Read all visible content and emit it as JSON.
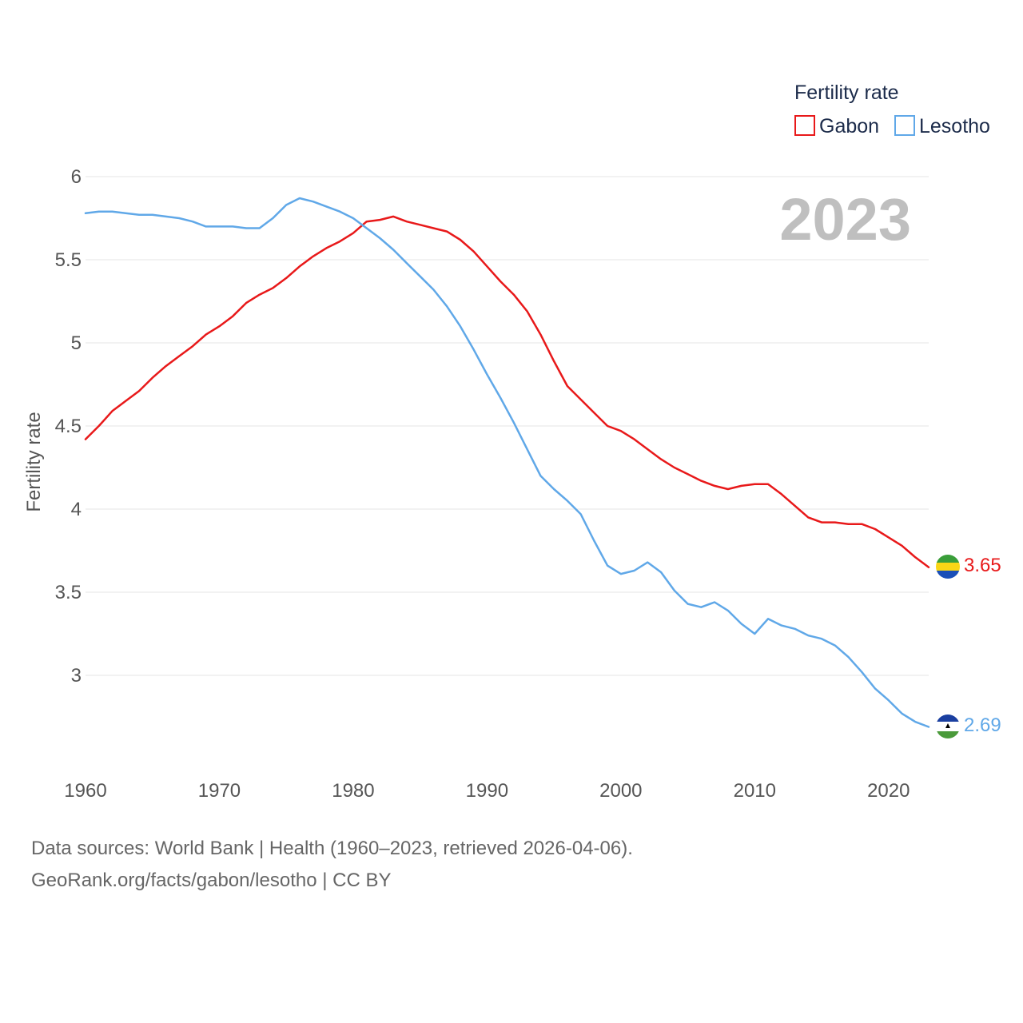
{
  "chart_data": {
    "type": "line",
    "title": "",
    "current_year": "2023",
    "legend": {
      "title": "Fertility rate",
      "placement": "top-right"
    },
    "xlabel": "",
    "ylabel": "Fertility rate",
    "xlim": [
      1960,
      2023
    ],
    "ylim": [
      2.5,
      6.1
    ],
    "x_ticks": [
      1960,
      1970,
      1980,
      1990,
      2000,
      2010,
      2020
    ],
    "x_tick_labels": [
      "1960",
      "1970",
      "1980",
      "1990",
      "2000",
      "2010",
      "2020"
    ],
    "y_ticks": [
      3,
      3.5,
      4,
      4.5,
      5,
      5.5,
      6
    ],
    "y_tick_labels": [
      "3",
      "3.5",
      "4",
      "4.5",
      "5",
      "5.5",
      "6"
    ],
    "grid": true,
    "x": [
      1960,
      1961,
      1962,
      1963,
      1964,
      1965,
      1966,
      1967,
      1968,
      1969,
      1970,
      1971,
      1972,
      1973,
      1974,
      1975,
      1976,
      1977,
      1978,
      1979,
      1980,
      1981,
      1982,
      1983,
      1984,
      1985,
      1986,
      1987,
      1988,
      1989,
      1990,
      1991,
      1992,
      1993,
      1994,
      1995,
      1996,
      1997,
      1998,
      1999,
      2000,
      2001,
      2002,
      2003,
      2004,
      2005,
      2006,
      2007,
      2008,
      2009,
      2010,
      2011,
      2012,
      2013,
      2014,
      2015,
      2016,
      2017,
      2018,
      2019,
      2020,
      2021,
      2022,
      2023
    ],
    "series": [
      {
        "name": "Gabon",
        "color": "#e8191a",
        "end_label": "3.65",
        "values": [
          4.42,
          4.5,
          4.59,
          4.65,
          4.71,
          4.79,
          4.86,
          4.92,
          4.98,
          5.05,
          5.1,
          5.16,
          5.24,
          5.29,
          5.33,
          5.39,
          5.46,
          5.52,
          5.57,
          5.61,
          5.66,
          5.73,
          5.74,
          5.76,
          5.73,
          5.71,
          5.69,
          5.67,
          5.62,
          5.55,
          5.46,
          5.37,
          5.29,
          5.19,
          5.05,
          4.89,
          4.74,
          4.66,
          4.58,
          4.5,
          4.47,
          4.42,
          4.36,
          4.3,
          4.25,
          4.21,
          4.17,
          4.14,
          4.12,
          4.14,
          4.15,
          4.15,
          4.09,
          4.02,
          3.95,
          3.92,
          3.92,
          3.91,
          3.91,
          3.88,
          3.83,
          3.78,
          3.71,
          3.65
        ]
      },
      {
        "name": "Lesotho",
        "color": "#60a8e8",
        "end_label": "2.69",
        "values": [
          5.78,
          5.79,
          5.79,
          5.78,
          5.77,
          5.77,
          5.76,
          5.75,
          5.73,
          5.7,
          5.7,
          5.7,
          5.69,
          5.69,
          5.75,
          5.83,
          5.87,
          5.85,
          5.82,
          5.79,
          5.75,
          5.69,
          5.63,
          5.56,
          5.48,
          5.4,
          5.32,
          5.22,
          5.1,
          4.96,
          4.81,
          4.67,
          4.52,
          4.36,
          4.2,
          4.12,
          4.05,
          3.97,
          3.81,
          3.66,
          3.61,
          3.63,
          3.68,
          3.62,
          3.51,
          3.43,
          3.41,
          3.44,
          3.39,
          3.31,
          3.25,
          3.34,
          3.3,
          3.28,
          3.24,
          3.22,
          3.18,
          3.11,
          3.02,
          2.92,
          2.85,
          2.77,
          2.72,
          2.69
        ]
      }
    ]
  },
  "footer": {
    "sources": "Data sources: World Bank | Health (1960–2023, retrieved 2026-04-06).",
    "credit": "GeoRank.org/facts/gabon/lesotho | CC BY"
  }
}
